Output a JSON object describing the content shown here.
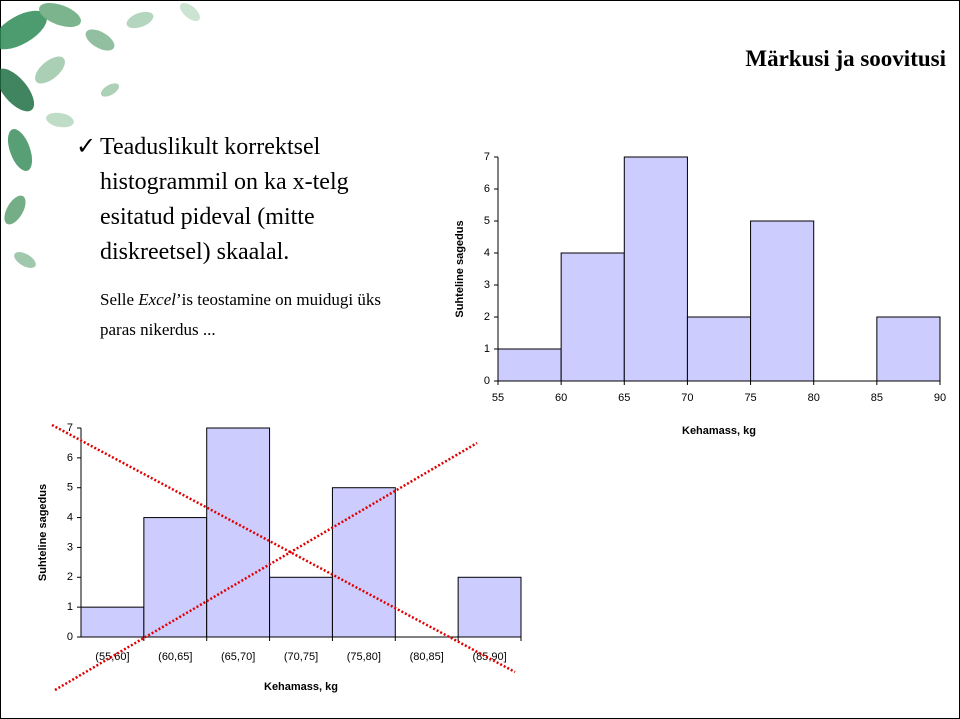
{
  "title": "Märkusi ja soovitusi",
  "bullet": "Teaduslikult korrektsel histogrammil on ka x-telg esitatud pideval (mitte diskreetsel) skaalal.",
  "note": [
    "Selle ",
    "Excel",
    "’is teostamine on muidugi üks paras nikerdus ..."
  ],
  "chart_data": [
    {
      "type": "histogram",
      "bins": [
        55,
        60,
        65,
        70,
        75,
        80,
        85,
        90
      ],
      "values": [
        1,
        4,
        7,
        2,
        5,
        0,
        2
      ],
      "color": "#ccccff",
      "xlim": [
        55,
        90
      ],
      "xticks": [
        55,
        60,
        65,
        70,
        75,
        80,
        85,
        90
      ],
      "ylim": [
        0,
        7
      ],
      "yticks": [
        0,
        1,
        2,
        3,
        4,
        5,
        6,
        7
      ],
      "x_label": "Kehamass, kg",
      "y_label": "Suhteline sagedus"
    },
    {
      "type": "bar",
      "categories": [
        "(55,60]",
        "(60,65]",
        "(65,70]",
        "(70,75]",
        "(75,80]",
        "(80,85]",
        "(85,90]"
      ],
      "values": [
        1,
        4,
        7,
        2,
        5,
        0,
        2
      ],
      "color": "#ccccff",
      "ylim": [
        0,
        7
      ],
      "yticks": [
        0,
        1,
        2,
        3,
        4,
        5,
        6,
        7
      ],
      "x_label": "Kehamass, kg",
      "y_label": "Suhteline sagedus"
    }
  ]
}
